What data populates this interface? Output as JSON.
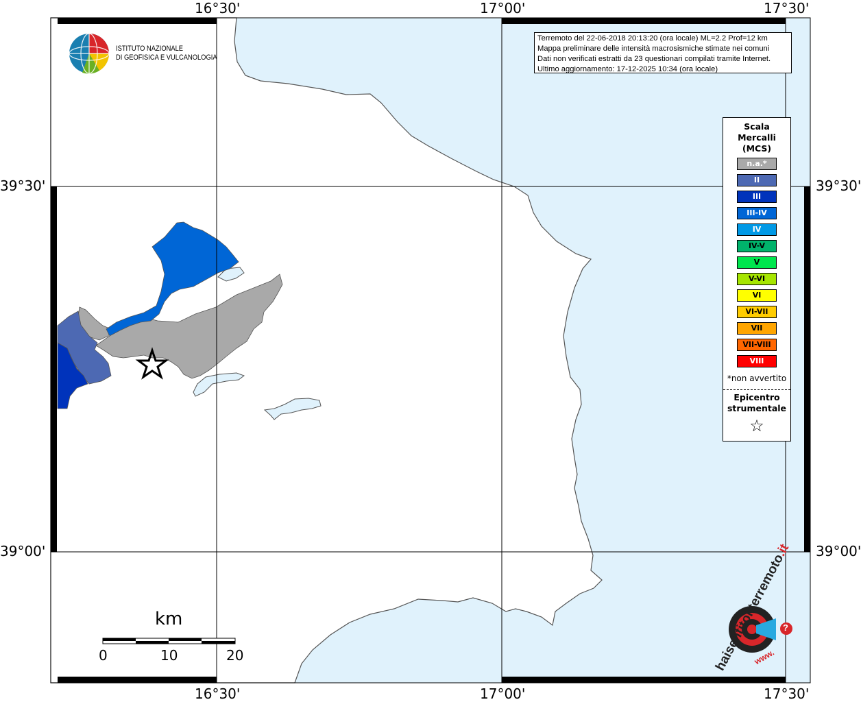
{
  "map": {
    "colors": {
      "sea": "#e0f2fc",
      "land": "#ffffff",
      "coast": "#555555",
      "grid": "#000000",
      "na": "#a9a9a9",
      "ii": "#4d69b3",
      "iii": "#0033bb",
      "iii_iv": "#0066d6"
    },
    "longitude_labels": [
      "16°30'",
      "17°00'",
      "17°30'"
    ],
    "latitude_labels": [
      "39°30'",
      "39°00'"
    ]
  },
  "info": {
    "line1": "Terremoto del 22-06-2018 20:13:20 (ora locale) ML=2.2 Prof=12 km",
    "line2": "Mappa preliminare delle intensità macrosismiche stimate nei comuni",
    "line3": "Dati non verificati estratti da 23 questionari compilati tramite Internet.",
    "line4": "Ultimo aggiornamento: 17-12-2025 10:34 (ora locale)"
  },
  "ingv_logo": {
    "line1": "ISTITUTO NAZIONALE",
    "line2": "DI GEOFISICA E VULCANOLOGIA"
  },
  "legend": {
    "title_line1": "Scala",
    "title_line2": "Mercalli",
    "title_line3": "(MCS)",
    "items": [
      {
        "label": "n.a.*",
        "color": "#a9a9a9",
        "text_color": "#ffffff"
      },
      {
        "label": "II",
        "color": "#4d69b3",
        "text_color": "#ffffff"
      },
      {
        "label": "III",
        "color": "#0033bb",
        "text_color": "#ffffff"
      },
      {
        "label": "III-IV",
        "color": "#0066d6",
        "text_color": "#ffffff"
      },
      {
        "label": "IV",
        "color": "#0099e6",
        "text_color": "#ffffff"
      },
      {
        "label": "IV-V",
        "color": "#00b36b",
        "text_color": "#000000"
      },
      {
        "label": "V",
        "color": "#00e64d",
        "text_color": "#000000"
      },
      {
        "label": "V-VI",
        "color": "#a6e600",
        "text_color": "#000000"
      },
      {
        "label": "VI",
        "color": "#ffff00",
        "text_color": "#000000"
      },
      {
        "label": "VI-VII",
        "color": "#ffcc00",
        "text_color": "#000000"
      },
      {
        "label": "VII",
        "color": "#ffa500",
        "text_color": "#000000"
      },
      {
        "label": "VII-VIII",
        "color": "#ff6600",
        "text_color": "#000000"
      },
      {
        "label": "VIII",
        "color": "#ff0000",
        "text_color": "#ffffff"
      }
    ],
    "na_note": "*non avvertito",
    "epicenter_line1": "Epicentro",
    "epicenter_line2": "strumentale",
    "epicenter_symbol": "☆"
  },
  "scalebar": {
    "unit": "km",
    "ticks": [
      "0",
      "10",
      "20"
    ]
  },
  "hsit_logo": {
    "text": "haisentitoilterremoto",
    "tld": ".it",
    "www": "www.",
    "question": "?"
  }
}
